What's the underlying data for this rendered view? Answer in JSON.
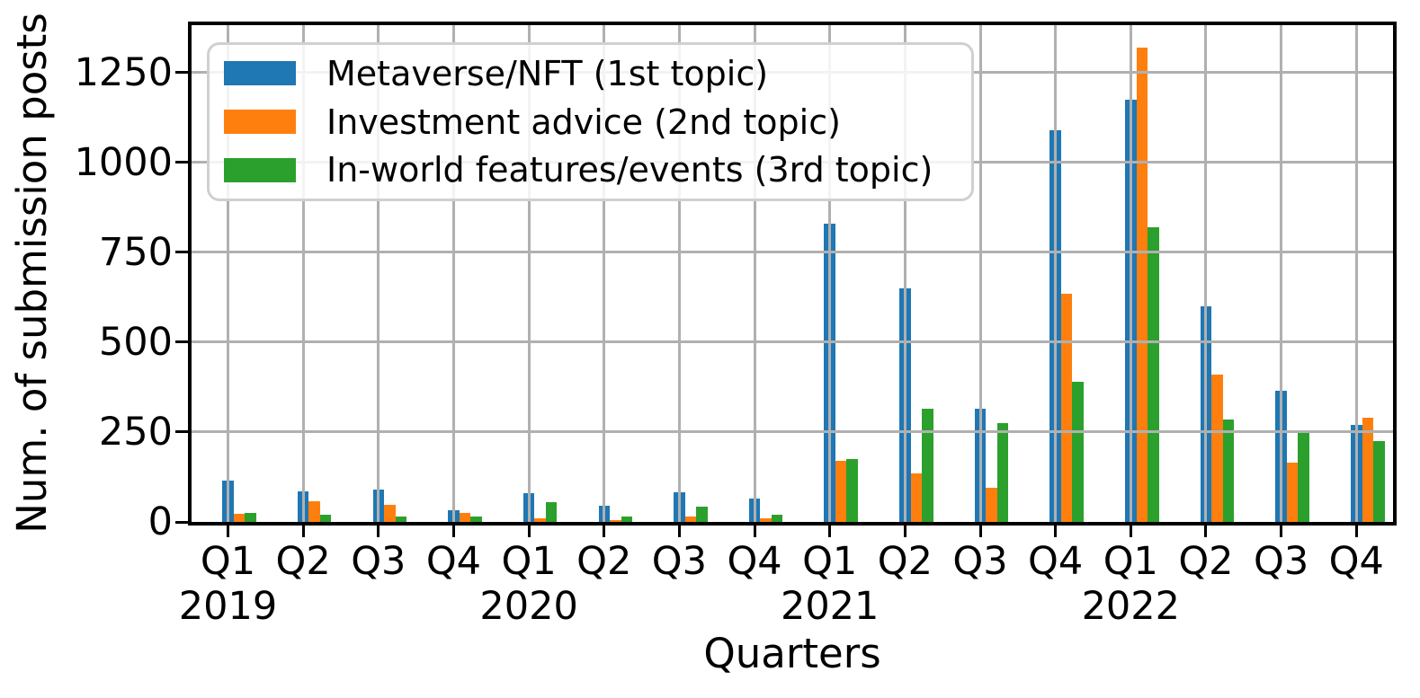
{
  "chart_data": {
    "type": "bar",
    "xlabel": "Quarters",
    "ylabel": "Num. of submission posts",
    "ylim": [
      0,
      1382
    ],
    "yticks": [
      0,
      250,
      500,
      750,
      1000,
      1250
    ],
    "grid": true,
    "grid_color": "#b0b0b0",
    "legend_position": "upper left",
    "categories": [
      "Q1",
      "Q2",
      "Q3",
      "Q4",
      "Q1",
      "Q2",
      "Q3",
      "Q4",
      "Q1",
      "Q2",
      "Q3",
      "Q4",
      "Q1",
      "Q2",
      "Q3",
      "Q4"
    ],
    "year_labels": [
      {
        "label": "2019",
        "tick_index": 0
      },
      {
        "label": "2020",
        "tick_index": 4
      },
      {
        "label": "2021",
        "tick_index": 8
      },
      {
        "label": "2022",
        "tick_index": 12
      }
    ],
    "series": [
      {
        "name": "Metaverse/NFT (1st topic)",
        "color": "#1f77b4",
        "values": [
          115,
          86,
          90,
          32,
          80,
          45,
          83,
          64,
          830,
          650,
          315,
          1090,
          1175,
          600,
          365,
          270
        ]
      },
      {
        "name": "Investment advice (2nd topic)",
        "color": "#ff7f0e",
        "values": [
          23,
          58,
          48,
          24,
          10,
          5,
          15,
          9,
          170,
          135,
          95,
          635,
          1320,
          410,
          165,
          290
        ]
      },
      {
        "name": "In-world features/events (3rd topic)",
        "color": "#2ca02c",
        "values": [
          26,
          20,
          15,
          15,
          54,
          16,
          42,
          21,
          175,
          315,
          275,
          390,
          820,
          285,
          255,
          225
        ]
      }
    ]
  }
}
